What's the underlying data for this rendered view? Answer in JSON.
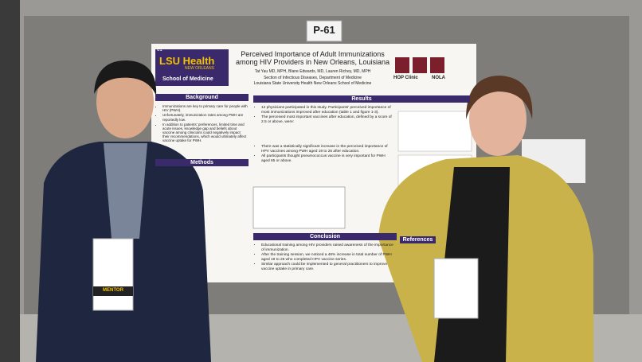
{
  "sign": "P-61",
  "poster": {
    "number": "61",
    "logo": "LSU Health",
    "logo_sub": "NEW ORLEANS",
    "school": "School of Medicine",
    "title": "Perceived Importance of Adult Immunizations among HIV Providers in New Orleans, Louisiana",
    "authors": "Tat Yau MD, MPH, Blane Edwards, MD, Lauren Richey, MD, MPH",
    "affiliations": [
      "Section of Infectious Diseases, Department of Medicine",
      "Louisiana State University Health New Orleans School of Medicine"
    ],
    "clinic": "HOP Clinic",
    "city": "NOLA",
    "background": {
      "heading": "Background",
      "bullets": [
        "Immunizations are key to primary care for people with HIV (PWH).",
        "Unfortunately, immunization rates among PWH are reportedly low.",
        "In addition to patients' preferences, limited time and acute issues, knowledge gap and beliefs about vaccine among clinicians could negatively impact their recommendations, which would ultimately affect vaccine uptake for PWH."
      ]
    },
    "methods": {
      "heading": "Methods"
    },
    "results": {
      "heading": "Results",
      "bullets": [
        "12 physicians participated in this study. Participants' perceived importance of most immunizations improved after education (table 1 and figure 1-3).",
        "The perceived most important vaccines after education, defined by a score of 2.5 or above, were:",
        "There was a statistically significant increase in the perceived importance of HPV vaccines among PWH aged 19 to 26 after education.",
        "All participants thought pneumococcus vaccine is very important for PWH aged 65 or above."
      ]
    },
    "conclusion": {
      "heading": "Conclusion",
      "bullets": [
        "Educational training among HIV providers raised awareness of the importance of immunization.",
        "After the training session, we noticed a 46% increase in total number of PWH aged 19 to 26 who completed HPV vaccine series.",
        "Similar approach could be implemented to general practitioners to improve vaccine uptake in primary care."
      ]
    },
    "references": {
      "heading": "References"
    }
  },
  "badge": "MENTOR"
}
